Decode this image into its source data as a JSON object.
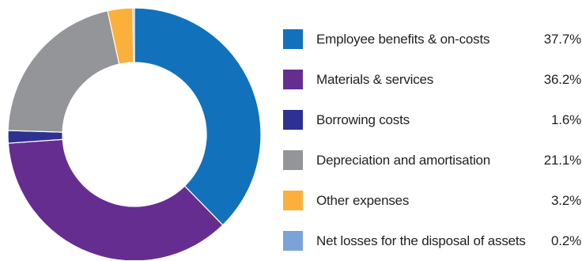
{
  "chart_data": {
    "type": "pie",
    "variant": "donut",
    "legend_position": "right",
    "slices": [
      {
        "label": "Employee benefits & on-costs",
        "value": 37.7,
        "display": "37.7%",
        "color": "#1172bb"
      },
      {
        "label": "Materials & services",
        "value": 36.2,
        "display": "36.2%",
        "color": "#662d91"
      },
      {
        "label": "Borrowing costs",
        "value": 1.6,
        "display": "1.6%",
        "color": "#2e3192"
      },
      {
        "label": "Depreciation and amortisation",
        "value": 21.1,
        "display": "21.1%",
        "color": "#939598"
      },
      {
        "label": "Other expenses",
        "value": 3.2,
        "display": "3.2%",
        "color": "#fbb03b"
      },
      {
        "label": "Net losses for the disposal of assets",
        "value": 0.2,
        "display": "0.2%",
        "color": "#7ba3d9"
      }
    ]
  }
}
